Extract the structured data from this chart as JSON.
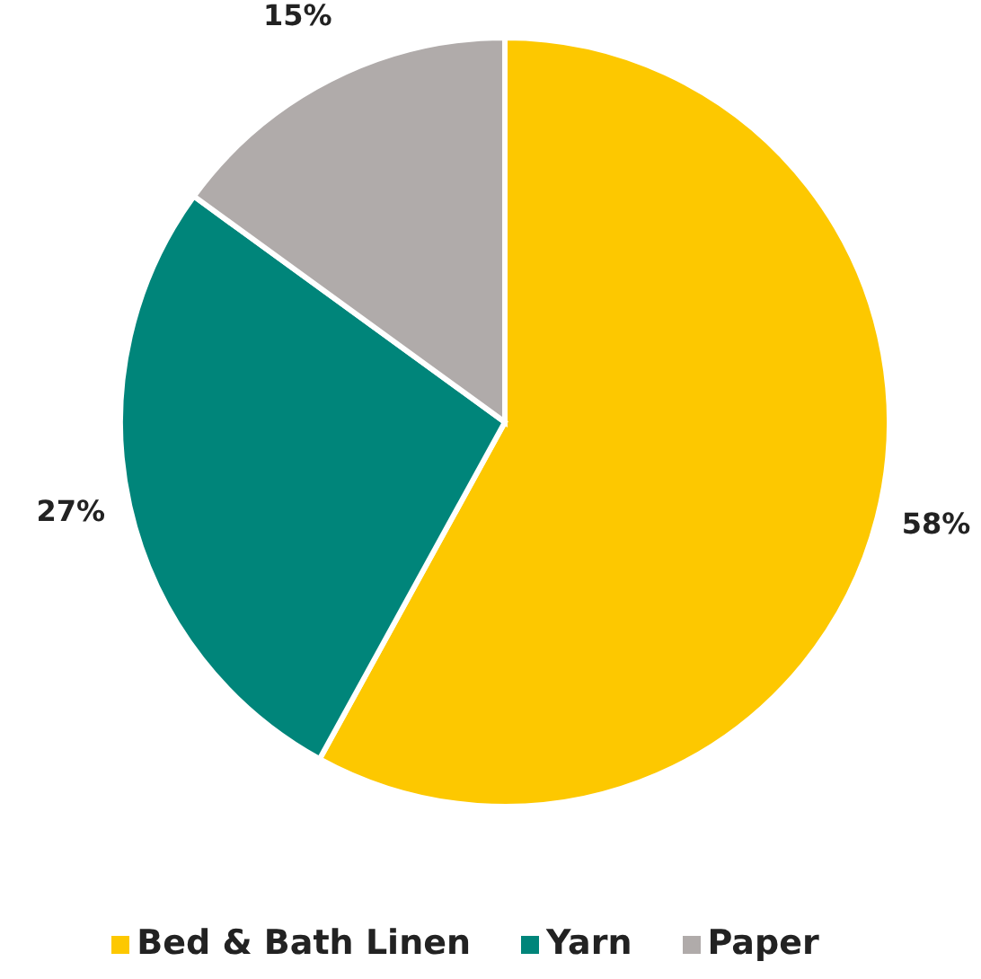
{
  "chart_data": {
    "type": "pie",
    "categories": [
      "Bed & Bath Linen",
      "Yarn",
      "Paper"
    ],
    "values": [
      58,
      27,
      15
    ],
    "colors": [
      "#fdc800",
      "#00857a",
      "#b0abaa"
    ],
    "value_labels": [
      "58%",
      "27%",
      "15%"
    ],
    "legend": "bottom"
  }
}
